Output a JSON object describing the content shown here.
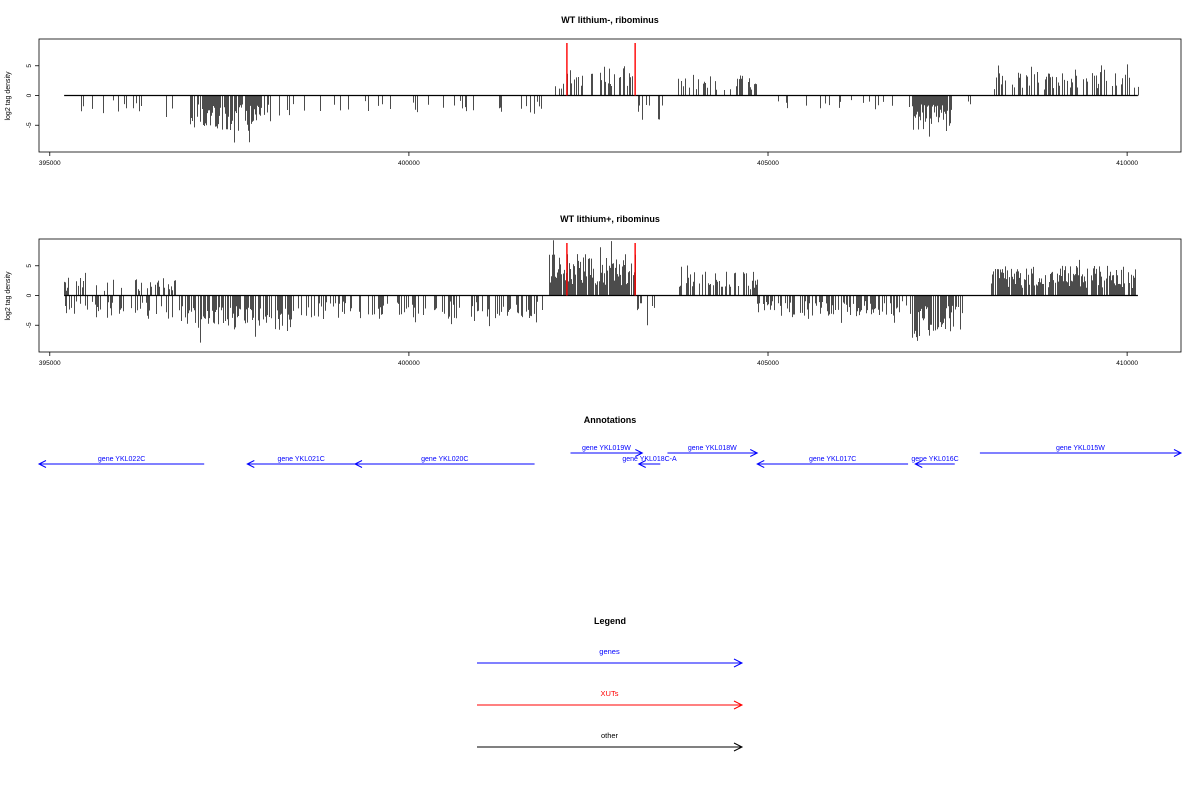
{
  "chart_data": [
    {
      "type": "bar",
      "title": "WT lithium-, ribominus",
      "ylabel": "log2 tag density",
      "xlim": [
        394850,
        410750
      ],
      "ylim": [
        -9.5,
        9.5
      ],
      "x_ticks": [
        395000,
        400000,
        405000,
        410000
      ],
      "y_ticks": [
        -5,
        0,
        5
      ],
      "markers": [
        {
          "x": 402200,
          "color": "#ff0000"
        },
        {
          "x": 403150,
          "color": "#ff0000"
        }
      ],
      "segments": [
        {
          "start": 395200,
          "end": 395400,
          "sign": 1,
          "amp": 2,
          "density": 0.05
        },
        {
          "start": 395400,
          "end": 396950,
          "sign": -1,
          "amp": 3,
          "density": 0.12
        },
        {
          "start": 396950,
          "end": 397950,
          "sign": -1,
          "amp": 6,
          "density": 0.85
        },
        {
          "start": 397950,
          "end": 398400,
          "sign": -1,
          "amp": 3.5,
          "density": 0.25
        },
        {
          "start": 398400,
          "end": 401850,
          "sign": -1,
          "amp": 3,
          "density": 0.12
        },
        {
          "start": 401900,
          "end": 402200,
          "sign": 1,
          "amp": 2,
          "density": 0.12
        },
        {
          "start": 402200,
          "end": 403150,
          "sign": 1,
          "amp": 5,
          "density": 0.4
        },
        {
          "start": 403150,
          "end": 403550,
          "sign": -1,
          "amp": 4.5,
          "density": 0.25
        },
        {
          "start": 403750,
          "end": 404850,
          "sign": 1,
          "amp": 3.5,
          "density": 0.3
        },
        {
          "start": 404850,
          "end": 407000,
          "sign": -1,
          "amp": 2.5,
          "density": 0.12
        },
        {
          "start": 407000,
          "end": 407550,
          "sign": -1,
          "amp": 6,
          "density": 0.9
        },
        {
          "start": 407600,
          "end": 408100,
          "sign": -1,
          "amp": 1.5,
          "density": 0.05
        },
        {
          "start": 408100,
          "end": 410150,
          "sign": 1,
          "amp": 4,
          "density": 0.45
        }
      ]
    },
    {
      "type": "bar",
      "title": "WT lithium+, ribominus",
      "ylabel": "log2 tag density",
      "xlim": [
        394850,
        410750
      ],
      "ylim": [
        -9.5,
        9.5
      ],
      "x_ticks": [
        395000,
        400000,
        405000,
        410000
      ],
      "y_ticks": [
        -5,
        0,
        5
      ],
      "markers": [
        {
          "x": 402200,
          "color": "#ff0000"
        },
        {
          "x": 403150,
          "color": "#ff0000"
        }
      ],
      "segments": [
        {
          "start": 395200,
          "end": 396750,
          "sign": 1,
          "amp": 3,
          "density": 0.25
        },
        {
          "start": 395200,
          "end": 396750,
          "sign": -1,
          "amp": 4,
          "density": 0.35
        },
        {
          "start": 396800,
          "end": 398400,
          "sign": -1,
          "amp": 6,
          "density": 0.6
        },
        {
          "start": 398450,
          "end": 401850,
          "sign": -1,
          "amp": 4,
          "density": 0.45
        },
        {
          "start": 401950,
          "end": 403150,
          "sign": 1,
          "amp": 7,
          "density": 0.9
        },
        {
          "start": 403150,
          "end": 403450,
          "sign": -1,
          "amp": 5,
          "density": 0.35
        },
        {
          "start": 403750,
          "end": 404850,
          "sign": 1,
          "amp": 4,
          "density": 0.55
        },
        {
          "start": 404850,
          "end": 407000,
          "sign": -1,
          "amp": 3.5,
          "density": 0.5
        },
        {
          "start": 407000,
          "end": 407700,
          "sign": -1,
          "amp": 7,
          "density": 0.9
        },
        {
          "start": 408100,
          "end": 410150,
          "sign": 1,
          "amp": 5,
          "density": 0.8
        }
      ]
    }
  ],
  "annotations": {
    "title": "Annotations",
    "color": "#0000ff",
    "genes": [
      {
        "label": "gene YKL022C",
        "start": 394850,
        "end": 397150,
        "strand": "-",
        "row": 1
      },
      {
        "label": "gene YKL021C",
        "start": 397750,
        "end": 399250,
        "strand": "-",
        "row": 1
      },
      {
        "label": "gene YKL020C",
        "start": 399250,
        "end": 401750,
        "strand": "-",
        "row": 1
      },
      {
        "label": "gene YKL019W",
        "start": 402250,
        "end": 403250,
        "strand": "+",
        "row": 0
      },
      {
        "label": "gene YKL018C-A",
        "start": 403200,
        "end": 403500,
        "strand": "-",
        "row": 1
      },
      {
        "label": "gene YKL018W",
        "start": 403600,
        "end": 404850,
        "strand": "+",
        "row": 0
      },
      {
        "label": "gene YKL017C",
        "start": 404850,
        "end": 406950,
        "strand": "-",
        "row": 1
      },
      {
        "label": "gene YKL016C",
        "start": 407050,
        "end": 407600,
        "strand": "-",
        "row": 1
      },
      {
        "label": "gene YKL015W",
        "start": 407950,
        "end": 410750,
        "strand": "+",
        "row": 0
      }
    ]
  },
  "legend": {
    "title": "Legend",
    "items": [
      {
        "label": "genes",
        "color": "#0000ff"
      },
      {
        "label": "XUTs",
        "color": "#ff0000"
      },
      {
        "label": "other",
        "color": "#000000"
      }
    ]
  }
}
